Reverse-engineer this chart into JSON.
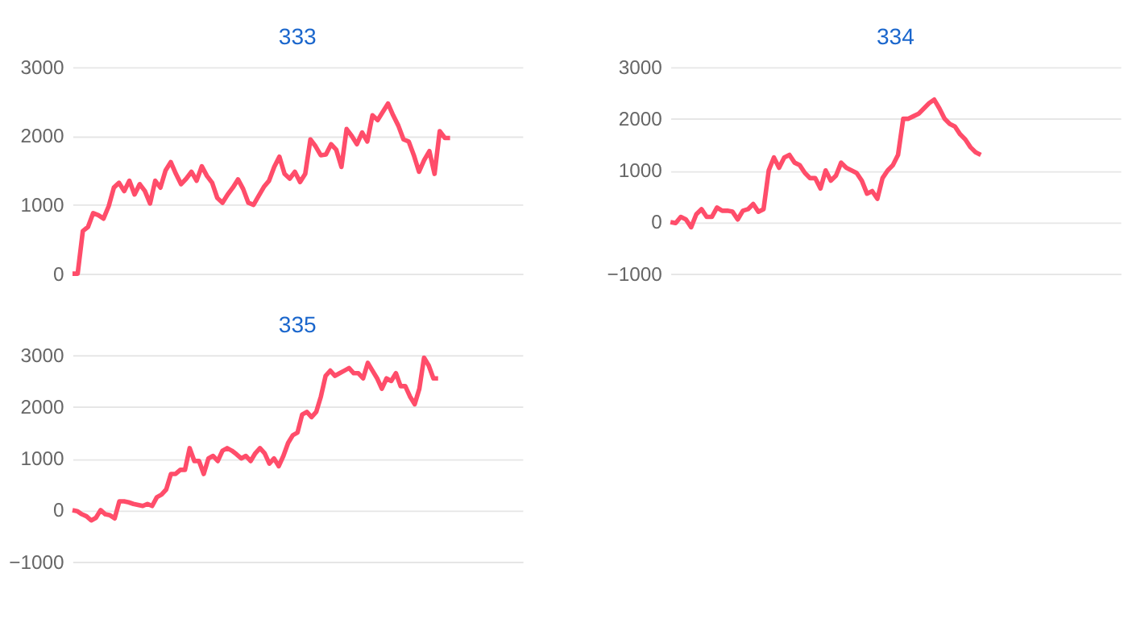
{
  "chart_data": [
    {
      "type": "line",
      "title": "333",
      "categories": [
        null,
        null,
        null,
        null,
        null,
        null,
        null,
        null,
        null,
        null,
        null,
        null,
        null,
        null,
        null,
        null,
        null,
        null,
        null,
        null,
        null,
        null,
        null,
        null,
        null,
        null,
        null,
        null,
        null,
        null,
        null,
        null,
        null,
        null,
        null,
        null,
        null,
        null,
        null,
        null,
        null,
        null,
        null,
        null,
        null,
        null,
        null,
        null,
        null,
        null,
        null,
        null,
        null,
        null,
        null,
        null,
        null,
        null,
        null,
        null,
        null,
        null,
        null,
        null,
        null,
        null,
        null,
        null,
        null,
        null,
        null,
        null,
        null,
        null,
        null,
        null,
        null,
        null,
        null,
        null,
        null,
        null,
        null,
        null,
        null,
        null,
        null,
        null
      ],
      "ylim": [
        0,
        3000
      ],
      "yticks": [
        0,
        1000,
        2000,
        3000
      ],
      "grid": "y",
      "tick_labels": "y",
      "series": [
        {
          "color": "#ff4d6a",
          "values": [
            0,
            0,
            620,
            680,
            880,
            850,
            800,
            980,
            1250,
            1320,
            1200,
            1350,
            1150,
            1300,
            1200,
            1020,
            1350,
            1250,
            1500,
            1620,
            1450,
            1300,
            1380,
            1480,
            1350,
            1560,
            1420,
            1320,
            1100,
            1030,
            1150,
            1250,
            1370,
            1230,
            1030,
            1000,
            1130,
            1260,
            1350,
            1550,
            1700,
            1450,
            1380,
            1480,
            1330,
            1450,
            1950,
            1850,
            1720,
            1730,
            1880,
            1800,
            1550,
            2100,
            2000,
            1880,
            2050,
            1920,
            2300,
            2230,
            2350,
            2470,
            2300,
            2150,
            1950,
            1920,
            1720,
            1480,
            1650,
            1780,
            1450,
            2070,
            1970,
            1970,
            null,
            null,
            null,
            null,
            null,
            null,
            null,
            null,
            null,
            null,
            null,
            null,
            null,
            null
          ]
        }
      ]
    },
    {
      "type": "line",
      "title": "334",
      "categories": [
        null,
        null,
        null,
        null,
        null,
        null,
        null,
        null,
        null,
        null,
        null,
        null,
        null,
        null,
        null,
        null,
        null,
        null,
        null,
        null,
        null,
        null,
        null,
        null,
        null,
        null,
        null,
        null,
        null,
        null,
        null,
        null,
        null,
        null,
        null,
        null,
        null,
        null,
        null,
        null,
        null,
        null,
        null,
        null,
        null,
        null,
        null,
        null,
        null,
        null,
        null,
        null,
        null,
        null,
        null,
        null,
        null,
        null,
        null,
        null,
        null,
        null,
        null,
        null,
        null,
        null,
        null,
        null,
        null,
        null,
        null,
        null,
        null,
        null,
        null,
        null,
        null,
        null,
        null,
        null,
        null,
        null,
        null,
        null,
        null,
        null,
        null,
        null
      ],
      "ylim": [
        -1000,
        3000
      ],
      "yticks": [
        -1000,
        0,
        1000,
        2000,
        3000
      ],
      "grid": "y",
      "tick_labels": "y",
      "series": [
        {
          "color": "#ff4d6a",
          "values": [
            0,
            -20,
            100,
            50,
            -100,
            150,
            250,
            100,
            100,
            280,
            220,
            220,
            200,
            50,
            220,
            250,
            350,
            200,
            250,
            1000,
            1250,
            1050,
            1250,
            1300,
            1150,
            1100,
            950,
            850,
            850,
            650,
            1000,
            800,
            900,
            1150,
            1050,
            1000,
            950,
            800,
            550,
            600,
            450,
            850,
            1000,
            1100,
            1300,
            2000,
            2000,
            2050,
            2100,
            2200,
            2300,
            2370,
            2200,
            2000,
            1900,
            1850,
            1700,
            1600,
            1450,
            1350,
            1300,
            null,
            null,
            null,
            null,
            null,
            null,
            null,
            null,
            null,
            null,
            null,
            null,
            null,
            null,
            null,
            null,
            null,
            null,
            null,
            null,
            null,
            null,
            null,
            null,
            null,
            null,
            null
          ]
        }
      ]
    },
    {
      "type": "line",
      "title": "335",
      "categories": [
        null,
        null,
        null,
        null,
        null,
        null,
        null,
        null,
        null,
        null,
        null,
        null,
        null,
        null,
        null,
        null,
        null,
        null,
        null,
        null,
        null,
        null,
        null,
        null,
        null,
        null,
        null,
        null,
        null,
        null,
        null,
        null,
        null,
        null,
        null,
        null,
        null,
        null,
        null,
        null,
        null,
        null,
        null,
        null,
        null,
        null,
        null,
        null,
        null,
        null,
        null,
        null,
        null,
        null,
        null,
        null,
        null,
        null,
        null,
        null,
        null,
        null,
        null,
        null,
        null,
        null,
        null,
        null,
        null,
        null,
        null,
        null,
        null,
        null,
        null,
        null,
        null,
        null,
        null,
        null,
        null,
        null,
        null,
        null,
        null,
        null,
        null,
        null,
        null,
        null,
        null,
        null,
        null,
        null,
        null,
        null,
        null
      ],
      "ylim": [
        -1000,
        3000
      ],
      "yticks": [
        -1000,
        0,
        1000,
        2000,
        3000
      ],
      "grid": "y",
      "tick_labels": "y",
      "series": [
        {
          "color": "#ff4d6a",
          "values": [
            0,
            -20,
            -80,
            -120,
            -200,
            -150,
            0,
            -80,
            -100,
            -160,
            170,
            170,
            150,
            120,
            100,
            80,
            120,
            80,
            250,
            300,
            400,
            700,
            700,
            780,
            780,
            1200,
            950,
            950,
            700,
            1000,
            1050,
            950,
            1150,
            1200,
            1150,
            1080,
            1000,
            1050,
            950,
            1100,
            1200,
            1100,
            900,
            1000,
            850,
            1050,
            1300,
            1450,
            1500,
            1850,
            1900,
            1800,
            1900,
            2200,
            2600,
            2700,
            2600,
            2650,
            2700,
            2750,
            2650,
            2650,
            2550,
            2850,
            2700,
            2550,
            2350,
            2550,
            2500,
            2650,
            2400,
            2400,
            2200,
            2050,
            2350,
            2950,
            2800,
            2550,
            2550,
            null,
            null,
            null,
            null,
            null,
            null,
            null,
            null,
            null,
            null,
            null,
            null,
            null,
            null,
            null,
            null,
            null,
            null
          ]
        }
      ]
    }
  ]
}
